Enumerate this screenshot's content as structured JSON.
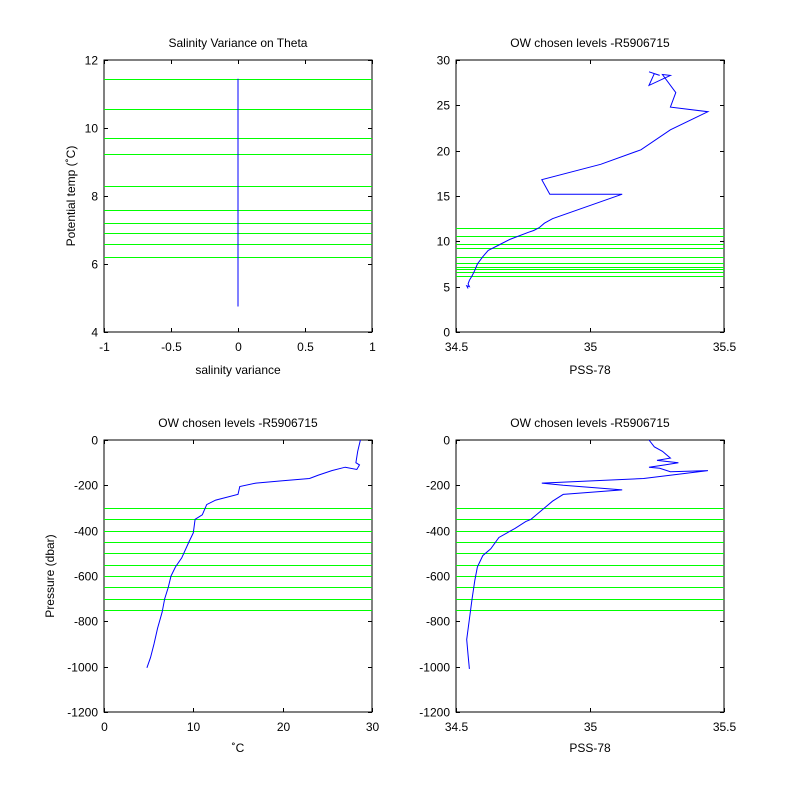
{
  "colors": {
    "levels": "#00ff00",
    "profile": "#0000ff",
    "axes": "#000000",
    "background": "#ffffff"
  },
  "chart_data": [
    {
      "id": "tl",
      "type": "line",
      "title": "Salinity Variance on Theta",
      "xlabel": "salinity variance",
      "ylabel": "Potential temp (˚C)",
      "xlim": [
        -1,
        1
      ],
      "ylim": [
        4,
        12
      ],
      "xticks": [
        -1,
        -0.5,
        0,
        0.5,
        1
      ],
      "xtick_labels": [
        "-1",
        "-0.5",
        "0",
        "0.5",
        "1"
      ],
      "yticks": [
        4,
        6,
        8,
        10,
        12
      ],
      "ytick_labels": [
        "4",
        "6",
        "8",
        "10",
        "12"
      ],
      "hlines": [
        6.2,
        6.6,
        6.9,
        7.2,
        7.6,
        8.3,
        9.25,
        9.7,
        10.55,
        11.45
      ],
      "series": [
        {
          "x": [
            0,
            0
          ],
          "y": [
            4.75,
            11.45
          ]
        }
      ]
    },
    {
      "id": "tr",
      "type": "line",
      "title": "OW chosen levels -R5906715",
      "xlabel": "PSS-78",
      "ylabel": "",
      "xlim": [
        34.5,
        35.5
      ],
      "ylim": [
        0,
        30
      ],
      "xticks": [
        34.5,
        35,
        35.5
      ],
      "xtick_labels": [
        "34.5",
        "35",
        "35.5"
      ],
      "yticks": [
        0,
        5,
        10,
        15,
        20,
        25,
        30
      ],
      "ytick_labels": [
        "0",
        "5",
        "10",
        "15",
        "20",
        "25",
        "30"
      ],
      "hlines": [
        6.2,
        6.6,
        6.9,
        7.2,
        7.6,
        8.3,
        9.25,
        9.7,
        10.55,
        11.45
      ],
      "series": [
        {
          "x": [
            35.22,
            35.26,
            35.24,
            35.22,
            35.3,
            35.27,
            35.32,
            35.3,
            35.44,
            35.3,
            35.19,
            35.04,
            34.82,
            34.85,
            35.12,
            34.86,
            34.83,
            34.81,
            34.79,
            34.77,
            34.7,
            34.66,
            34.62,
            34.6,
            34.58,
            34.57,
            34.56,
            34.55,
            34.545,
            34.55,
            34.54,
            34.545
          ],
          "y": [
            28.7,
            28.3,
            28.5,
            27.2,
            28.3,
            28.4,
            26.4,
            24.8,
            24.3,
            22.3,
            20.1,
            18.5,
            16.8,
            15.2,
            15.2,
            12.5,
            12.0,
            11.5,
            11.2,
            11.0,
            10.2,
            9.6,
            9.0,
            8.3,
            7.5,
            6.8,
            6.2,
            5.7,
            5.3,
            5.0,
            5.1,
            4.8
          ]
        }
      ]
    },
    {
      "id": "bl",
      "type": "line",
      "title": "OW chosen levels -R5906715",
      "xlabel": "˚C",
      "ylabel": "Pressure (dbar)",
      "xlim": [
        0,
        30
      ],
      "ylim": [
        -1200,
        0
      ],
      "xticks": [
        0,
        10,
        20,
        30
      ],
      "xtick_labels": [
        "0",
        "10",
        "20",
        "30"
      ],
      "yticks": [
        -1200,
        -1000,
        -800,
        -600,
        -400,
        -200,
        0
      ],
      "ytick_labels": [
        "-1200",
        "-1000",
        "-800",
        "-600",
        "-400",
        "-200",
        "0"
      ],
      "hlines": [
        -300,
        -350,
        -400,
        -450,
        -500,
        -550,
        -600,
        -650,
        -700,
        -750
      ],
      "series": [
        {
          "x": [
            28.7,
            28.4,
            28.2,
            28.6,
            28.3,
            27.0,
            25.5,
            24.0,
            23.0,
            20.0,
            17.0,
            15.2,
            15.0,
            12.5,
            11.5,
            11.0,
            10.2,
            10.0,
            9.5,
            8.7,
            8.0,
            7.5,
            7.2,
            6.8,
            6.5,
            6.0,
            5.6,
            5.2,
            4.8
          ],
          "y": [
            0,
            -50,
            -100,
            -110,
            -130,
            -120,
            -135,
            -155,
            -170,
            -180,
            -190,
            -205,
            -240,
            -265,
            -285,
            -330,
            -350,
            -410,
            -450,
            -520,
            -560,
            -600,
            -650,
            -700,
            -760,
            -830,
            -900,
            -960,
            -1005
          ]
        }
      ]
    },
    {
      "id": "br",
      "type": "line",
      "title": "OW chosen levels -R5906715",
      "xlabel": "PSS-78",
      "ylabel": "",
      "xlim": [
        34.5,
        35.5
      ],
      "ylim": [
        -1200,
        0
      ],
      "xticks": [
        34.5,
        35,
        35.5
      ],
      "xtick_labels": [
        "34.5",
        "35",
        "35.5"
      ],
      "yticks": [
        -1200,
        -1000,
        -800,
        -600,
        -400,
        -200,
        0
      ],
      "ytick_labels": [
        "-1200",
        "-1000",
        "-800",
        "-600",
        "-400",
        "-200",
        "0"
      ],
      "hlines": [
        -300,
        -350,
        -400,
        -450,
        -500,
        -550,
        -600,
        -650,
        -700,
        -750
      ],
      "series": [
        {
          "x": [
            35.22,
            35.24,
            35.27,
            35.3,
            35.25,
            35.33,
            35.28,
            35.22,
            35.26,
            35.3,
            35.44,
            35.2,
            34.82,
            34.9,
            35.12,
            34.9,
            34.86,
            34.83,
            34.8,
            34.78,
            34.76,
            34.72,
            34.66,
            34.63,
            34.6,
            34.58,
            34.57,
            34.56,
            34.55,
            34.54,
            34.545,
            34.55
          ],
          "y": [
            0,
            -30,
            -50,
            -80,
            -90,
            -100,
            -110,
            -120,
            -125,
            -140,
            -135,
            -170,
            -190,
            -200,
            -220,
            -240,
            -270,
            -300,
            -330,
            -350,
            -360,
            -390,
            -430,
            -480,
            -510,
            -560,
            -620,
            -700,
            -790,
            -880,
            -950,
            -1010
          ]
        }
      ]
    }
  ]
}
